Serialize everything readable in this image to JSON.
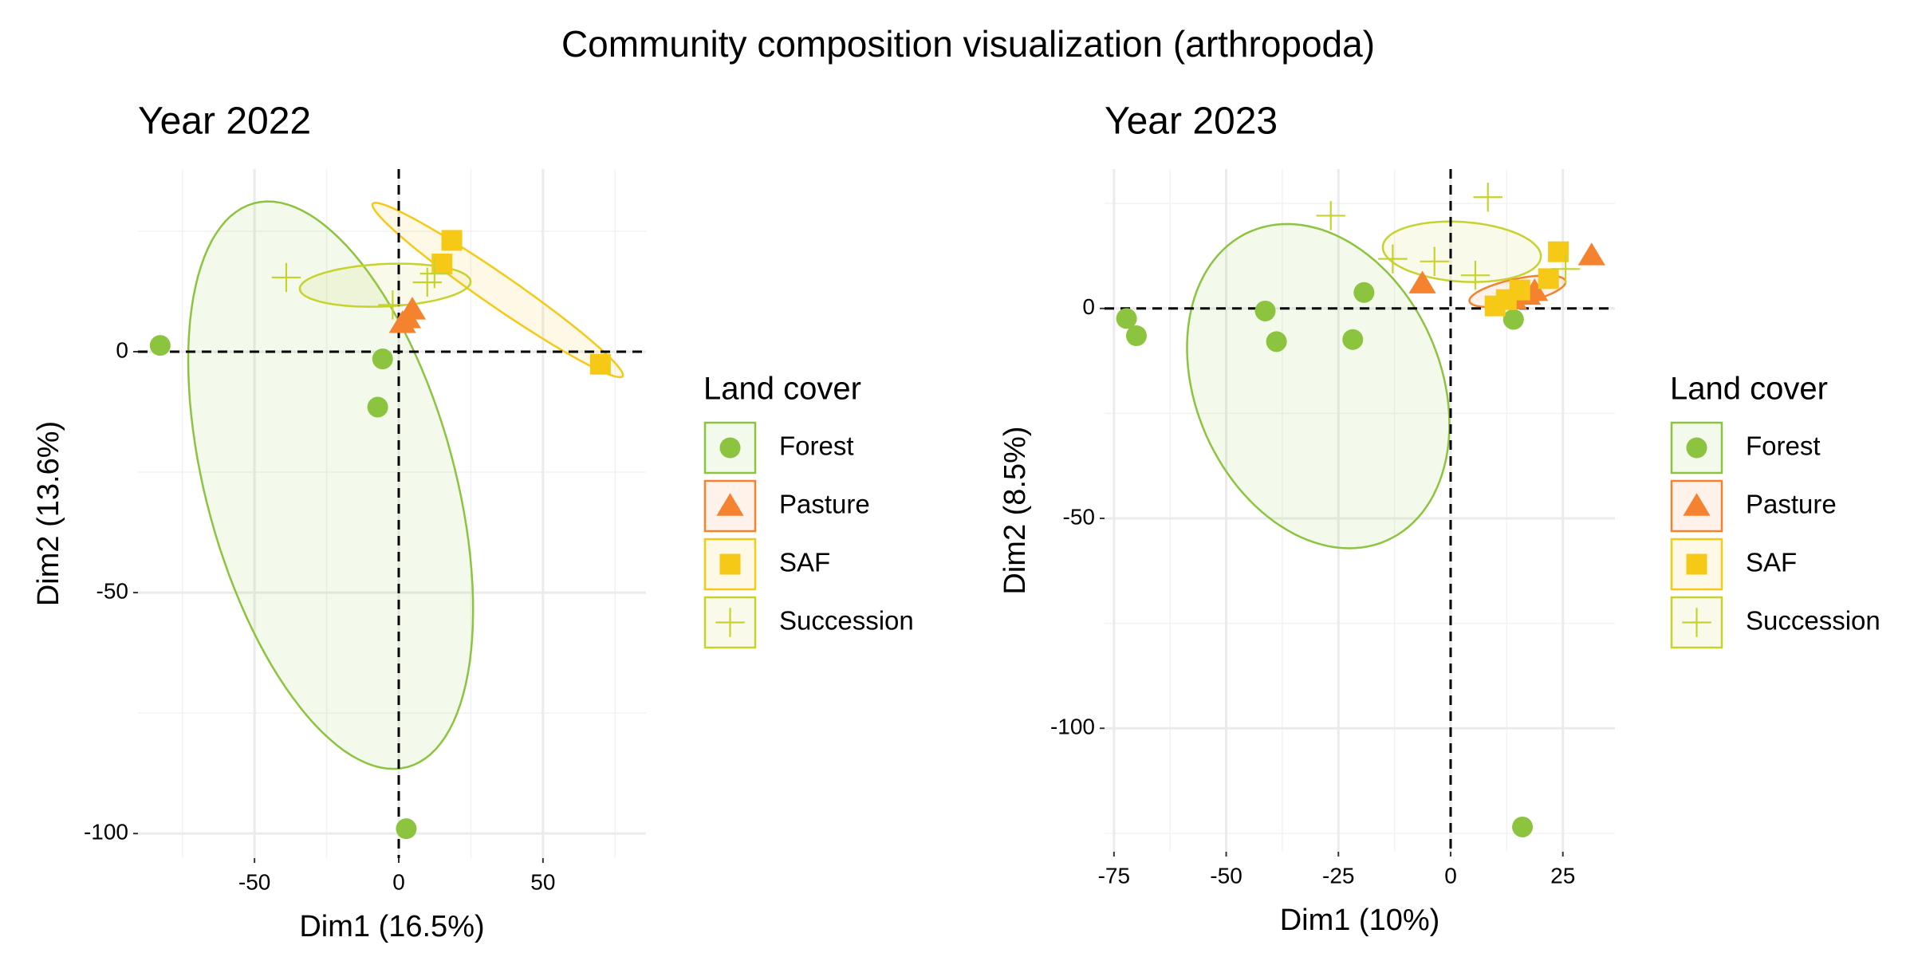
{
  "title": "Community composition visualization (arthropoda)",
  "chart_data": [
    {
      "type": "scatter",
      "title": "Year 2022",
      "x_label": "Dim1 (16.5%)",
      "y_label": "Dim2 (13.6%)",
      "xlim": [
        -90.4,
        85.7
      ],
      "ylim": [
        -105.1,
        37.9
      ],
      "xticks": [
        -50,
        0,
        50
      ],
      "yticks": [
        -100,
        -50,
        0
      ],
      "grid": true,
      "reference_x": 0,
      "reference_y": 0,
      "legend_title": "Land cover",
      "legend_position": "right",
      "series": [
        {
          "name": "Forest",
          "color": "#8cc43f",
          "marker": "circle",
          "x": [
            -82.7,
            -5.6,
            -7.3,
            2.6
          ],
          "y": [
            1.3,
            -1.5,
            -11.5,
            -99
          ],
          "ellipse": {
            "cx": -23.6,
            "cy": -27.7,
            "ux": -26.6,
            "uy": 58.5,
            "vx": 41.6,
            "vy": 6.7
          }
        },
        {
          "name": "Pasture",
          "color": "#f4822e",
          "marker": "triangle",
          "x": [
            1.3,
            4.7,
            3.0
          ],
          "y": [
            5.9,
            8.7,
            6.9
          ]
        },
        {
          "name": "SAF",
          "color": "#f5c916",
          "marker": "square",
          "x": [
            18.4,
            15,
            69.9
          ],
          "y": [
            23.1,
            18.2,
            -2.6
          ],
          "ellipse": {
            "cx": 34.3,
            "cy": 12.8,
            "ux": 43.3,
            "uy": -17.9,
            "vx": -3.2,
            "vy": -2.7
          }
        },
        {
          "name": "Succession",
          "color": "#c8d22d",
          "marker": "plus",
          "x": [
            -39,
            -2.1,
            9.9,
            12.4
          ],
          "y": [
            15.4,
            9.7,
            14.4,
            16.2
          ],
          "ellipse": {
            "cx": -4.7,
            "cy": 13.8,
            "ux": 29.6,
            "uy": 0.8,
            "vx": 0.4,
            "vy": -4.4
          }
        }
      ]
    },
    {
      "type": "scatter",
      "title": "Year 2023",
      "x_label": "Dim1 (10%)",
      "y_label": "Dim2 (8.5%)",
      "xlim": [
        -77.1,
        36.6
      ],
      "ylim": [
        -129.4,
        33.2
      ],
      "xticks": [
        -75,
        -50,
        -25,
        0,
        25
      ],
      "yticks": [
        -100,
        -50,
        0
      ],
      "grid": true,
      "reference_x": 0,
      "reference_y": 0,
      "legend_title": "Land cover",
      "legend_position": "right",
      "series": [
        {
          "name": "Forest",
          "color": "#8cc43f",
          "marker": "circle",
          "x": [
            -72.2,
            -70,
            -41.3,
            -38.8,
            -21.8,
            -19.3,
            14,
            16
          ],
          "y": [
            -2.4,
            -6.5,
            -0.6,
            -7.9,
            -7.4,
            3.8,
            -2.6,
            -123.5
          ],
          "ellipse": {
            "cx": -29.5,
            "cy": -18.5,
            "ux": 15.2,
            "uy": -36.8,
            "vx": 24.96,
            "vy": 11.7
          }
        },
        {
          "name": "Pasture",
          "color": "#f4822e",
          "marker": "triangle",
          "x": [
            -6.3,
            31.4,
            17.1,
            14,
            18.7
          ],
          "y": [
            5.9,
            12.6,
            3.2,
            2.1,
            4.1
          ],
          "ellipse": {
            "cx": 14.9,
            "cy": 4.1,
            "ux": 10.7,
            "uy": 2.4,
            "vx": 0.6,
            "vy": -2.9
          }
        },
        {
          "name": "SAF",
          "color": "#f5c916",
          "marker": "square",
          "x": [
            24,
            9.9,
            15.4,
            21.8,
            12.4
          ],
          "y": [
            13.5,
            0.6,
            4.4,
            7.1,
            2.1
          ]
        },
        {
          "name": "Succession",
          "color": "#c8d22d",
          "marker": "plus",
          "x": [
            -26.7,
            8.3,
            -12.9,
            -3.6,
            5.5,
            25.6
          ],
          "y": [
            22.1,
            26.5,
            11.8,
            11.2,
            7.9,
            9.4
          ],
          "ellipse": {
            "cx": 2.5,
            "cy": 13.5,
            "ux": 17.6,
            "uy": -1.2,
            "vx": -0.3,
            "vy": -7.1
          }
        }
      ]
    }
  ]
}
